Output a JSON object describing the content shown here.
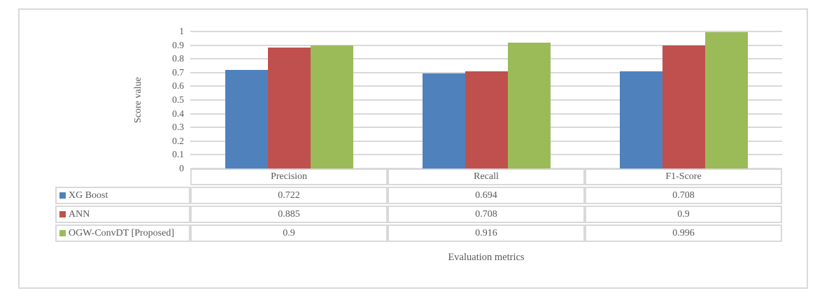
{
  "figure": {
    "background": "#ffffff",
    "frame_border_color": "#d9d9d9",
    "text_color": "#595959"
  },
  "chart_data": {
    "type": "bar",
    "title": "",
    "categories": [
      "Precision",
      "Recall",
      "F1-Score"
    ],
    "series": [
      {
        "name": "XG Boost",
        "color": "#4F81BD",
        "values": [
          0.722,
          0.694,
          0.708
        ]
      },
      {
        "name": "ANN",
        "color": "#C0504D",
        "values": [
          0.885,
          0.708,
          0.9
        ]
      },
      {
        "name": "OGW-ConvDT [Proposed]",
        "color": "#9BBB59",
        "values": [
          0.9,
          0.916,
          0.996
        ]
      }
    ],
    "xlabel": "Evaluation metrics",
    "ylabel": "Score value",
    "ylim": [
      0,
      1
    ],
    "y_ticks": [
      "1",
      "0.9",
      "0.8",
      "0.7",
      "0.6",
      "0.5",
      "0.4",
      "0.3",
      "0.2",
      "0.1",
      "0"
    ],
    "grid": true,
    "gridline_color": "#d9d9d9",
    "legend_position": "data-table-left-column"
  },
  "data_table": {
    "column_headers": [
      "Precision",
      "Recall",
      "F1-Score"
    ],
    "rows": [
      {
        "label": "XG Boost",
        "swatch_color": "#4F81BD",
        "values": [
          "0.722",
          "0.694",
          "0.708"
        ]
      },
      {
        "label": "ANN",
        "swatch_color": "#C0504D",
        "values": [
          "0.885",
          "0.708",
          "0.9"
        ]
      },
      {
        "label": "OGW-ConvDT [Proposed]",
        "swatch_color": "#9BBB59",
        "values": [
          "0.9",
          "0.916",
          "0.996"
        ]
      }
    ]
  }
}
